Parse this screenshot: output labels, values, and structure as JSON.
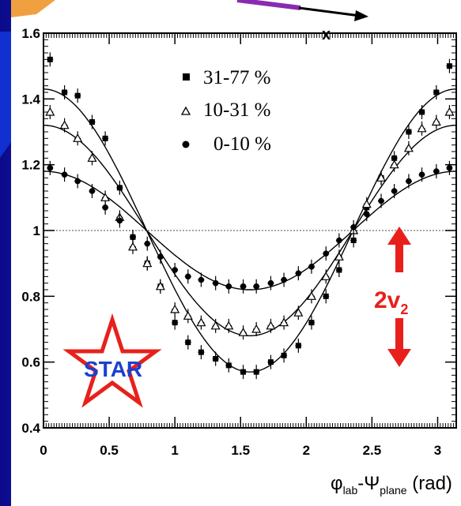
{
  "chart_data": {
    "type": "scatter",
    "xlabel": {
      "main1": "φ",
      "sub1": "lab",
      "dash": "-Ψ",
      "sub2": "plane",
      "unit": " (rad)"
    },
    "xlim": [
      0,
      3.14159
    ],
    "ylim": [
      0.4,
      1.6
    ],
    "x_ticks": [
      "0",
      "0.5",
      "1",
      "1.5",
      "2",
      "2.5",
      "3"
    ],
    "y_ticks": [
      "0.4",
      "0.6",
      "0.8",
      "1",
      "1.2",
      "1.4",
      "1.6"
    ],
    "reference_line": 1.0,
    "series": [
      {
        "name": "31-77 %",
        "marker": "square",
        "x": [
          0.05,
          0.16,
          0.26,
          0.37,
          0.47,
          0.58,
          0.68,
          0.79,
          0.89,
          1.0,
          1.1,
          1.2,
          1.31,
          1.41,
          1.52,
          1.62,
          1.73,
          1.83,
          1.94,
          2.04,
          2.15,
          2.25,
          2.36,
          2.46,
          2.57,
          2.67,
          2.78,
          2.88,
          2.99,
          3.09
        ],
        "y": [
          1.52,
          1.42,
          1.41,
          1.33,
          1.28,
          1.13,
          0.98,
          0.9,
          0.83,
          0.72,
          0.66,
          0.63,
          0.61,
          0.59,
          0.57,
          0.57,
          0.6,
          0.62,
          0.65,
          0.72,
          0.8,
          0.88,
          0.97,
          1.07,
          1.16,
          1.22,
          1.3,
          1.36,
          1.42,
          1.5
        ],
        "fit_amplitude": 0.43
      },
      {
        "name": "10-31 %",
        "marker": "triangle",
        "x": [
          0.05,
          0.16,
          0.26,
          0.37,
          0.47,
          0.58,
          0.68,
          0.79,
          0.89,
          1.0,
          1.1,
          1.2,
          1.31,
          1.41,
          1.52,
          1.62,
          1.73,
          1.83,
          1.94,
          2.04,
          2.15,
          2.25,
          2.36,
          2.46,
          2.57,
          2.67,
          2.78,
          2.88,
          2.99,
          3.09
        ],
        "y": [
          1.36,
          1.32,
          1.28,
          1.22,
          1.1,
          1.04,
          0.95,
          0.9,
          0.83,
          0.76,
          0.74,
          0.72,
          0.71,
          0.71,
          0.69,
          0.7,
          0.71,
          0.72,
          0.75,
          0.8,
          0.86,
          0.92,
          1.0,
          1.08,
          1.16,
          1.2,
          1.25,
          1.31,
          1.33,
          1.36
        ],
        "fit_amplitude": 0.32
      },
      {
        "name": "0-10 %",
        "marker": "circle",
        "x": [
          0.05,
          0.16,
          0.26,
          0.37,
          0.47,
          0.58,
          0.68,
          0.79,
          0.89,
          1.0,
          1.1,
          1.2,
          1.31,
          1.41,
          1.52,
          1.62,
          1.73,
          1.83,
          1.94,
          2.04,
          2.15,
          2.25,
          2.36,
          2.46,
          2.57,
          2.67,
          2.78,
          2.88,
          2.99,
          3.09
        ],
        "y": [
          1.19,
          1.17,
          1.15,
          1.12,
          1.07,
          1.03,
          0.98,
          0.96,
          0.92,
          0.88,
          0.86,
          0.85,
          0.84,
          0.83,
          0.83,
          0.83,
          0.84,
          0.85,
          0.87,
          0.89,
          0.93,
          0.97,
          1.01,
          1.05,
          1.09,
          1.12,
          1.15,
          1.17,
          1.18,
          1.19
        ],
        "fit_amplitude": 0.18
      }
    ]
  },
  "annotations": {
    "two_v2": {
      "main": "2v",
      "sub": "2"
    },
    "star_logo": "STAR",
    "x_axis_arrow_label": "x"
  },
  "colors": {
    "background_blue": "#0000cc",
    "panel": "#ffffff",
    "arrow_red": "#e8201c",
    "star_red": "#e8201c",
    "star_text_blue": "#1a3fd0",
    "top_arrow_orange": "#f0a040",
    "top_arrow_purple": "#8a2ab0"
  }
}
